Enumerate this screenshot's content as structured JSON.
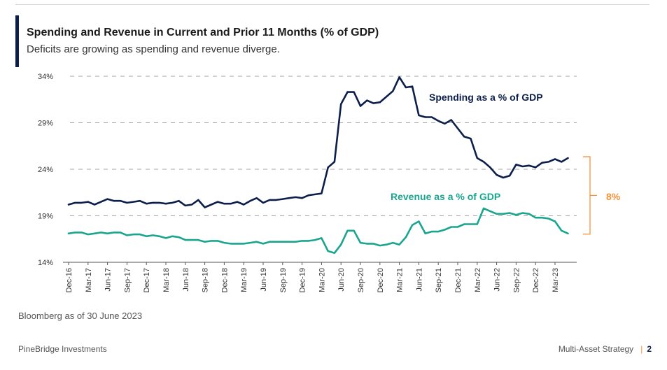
{
  "title": "Spending and Revenue in Current and Prior 11 Months (% of GDP)",
  "subtitle": "Deficits are growing as spending and revenue diverge.",
  "source": "Bloomberg as of 30 June 2023",
  "footer": {
    "company": "PineBridge Investments",
    "section": "Multi-Asset Strategy",
    "separator": "|",
    "page": "2"
  },
  "colors": {
    "spending": "#0c1f4a",
    "revenue": "#1aa58f",
    "gap": "#f5913a",
    "grid": "#a6a6a6"
  },
  "chart_data": {
    "type": "line",
    "ylim": [
      14,
      34
    ],
    "y_ticks": [
      14,
      19,
      24,
      29,
      34
    ],
    "y_tick_labels": [
      "14%",
      "19%",
      "24%",
      "29%",
      "34%"
    ],
    "grid": "horizontal dashed",
    "x_tick_labels": [
      "Dec-16",
      "Mar-17",
      "Jun-17",
      "Sep-17",
      "Dec-17",
      "Mar-18",
      "Jun-18",
      "Sep-18",
      "Dec-18",
      "Mar-19",
      "Jun-19",
      "Sep-19",
      "Dec-19",
      "Mar-20",
      "Jun-20",
      "Sep-20",
      "Dec-20",
      "Mar-21",
      "Jun-21",
      "Sep-21",
      "Dec-21",
      "Mar-22",
      "Jun-22",
      "Sep-22",
      "Dec-22",
      "Mar-23"
    ],
    "x_start": "Dec-16",
    "x_end": "May-23",
    "series": [
      {
        "name": "Spending as a % of GDP",
        "values": [
          20.2,
          20.4,
          20.4,
          20.5,
          20.2,
          20.5,
          20.8,
          20.6,
          20.6,
          20.4,
          20.5,
          20.6,
          20.3,
          20.4,
          20.4,
          20.3,
          20.4,
          20.6,
          20.1,
          20.2,
          20.7,
          19.9,
          20.2,
          20.5,
          20.3,
          20.3,
          20.5,
          20.2,
          20.6,
          20.9,
          20.4,
          20.7,
          20.7,
          20.8,
          20.9,
          21.0,
          20.9,
          21.2,
          21.3,
          21.4,
          24.2,
          24.8,
          31.0,
          32.3,
          32.3,
          30.8,
          31.4,
          31.1,
          31.2,
          31.8,
          32.4,
          33.9,
          32.8,
          32.9,
          29.8,
          29.6,
          29.6,
          29.2,
          28.9,
          29.3,
          28.4,
          27.5,
          27.3,
          25.2,
          24.8,
          24.2,
          23.4,
          23.1,
          23.3,
          24.5,
          24.3,
          24.4,
          24.2,
          24.7,
          24.8,
          25.1,
          24.8,
          25.2
        ]
      },
      {
        "name": "Revenue as a % of GDP",
        "values": [
          17.1,
          17.2,
          17.2,
          17.0,
          17.1,
          17.2,
          17.1,
          17.2,
          17.2,
          16.9,
          17.0,
          17.0,
          16.8,
          16.9,
          16.8,
          16.6,
          16.8,
          16.7,
          16.4,
          16.4,
          16.4,
          16.2,
          16.3,
          16.3,
          16.1,
          16.0,
          16.0,
          16.0,
          16.1,
          16.2,
          16.0,
          16.2,
          16.2,
          16.2,
          16.2,
          16.2,
          16.3,
          16.3,
          16.4,
          16.6,
          15.2,
          15.0,
          15.9,
          17.4,
          17.4,
          16.1,
          16.0,
          16.0,
          15.8,
          15.9,
          16.1,
          15.9,
          16.7,
          18.0,
          18.4,
          17.1,
          17.3,
          17.3,
          17.5,
          17.8,
          17.8,
          18.1,
          18.1,
          18.1,
          19.8,
          19.5,
          19.2,
          19.2,
          19.3,
          19.1,
          19.3,
          19.2,
          18.8,
          18.8,
          18.7,
          18.4,
          17.4,
          17.1
        ]
      }
    ],
    "annotations": {
      "spending_label": "Spending as a % of GDP",
      "revenue_label": "Revenue as a % of GDP",
      "gap_label": "8%"
    }
  }
}
